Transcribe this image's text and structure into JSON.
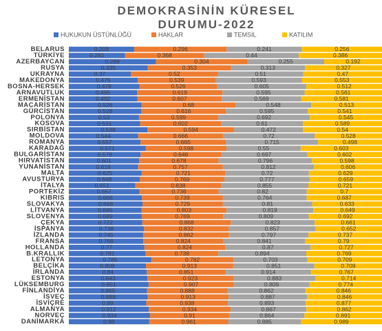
{
  "chart_data": {
    "type": "stacked-percent-bar",
    "title": "DEMOKRASİNİN KÜRESEL DURUMU-2022",
    "categories": [
      "BELARUS",
      "TÜRKİYE",
      "AZERBAYCAN",
      "RUSYA",
      "UKRAYNA",
      "MAKEDONYA",
      "BOSNA-HERSEK",
      "ARNAVUTLUK",
      "ERMENİSTAN",
      "MACARİSTAN",
      "GÜRCİSTAN",
      "POLONYA",
      "KOSOVA",
      "SIRBİSTAN",
      "MOLDOVA",
      "ROMANYA",
      "KARADAĞ",
      "BULGARİSTAN",
      "HIRVATİSTAN",
      "YUNANİSTAN",
      "MALTA",
      "AVUSTURYA",
      "İTALYA",
      "PORTEKİZ",
      "KIBRIS",
      "SLOVAKYA",
      "LİTVANYA",
      "SLOVENYA",
      "ÇEKYA",
      "İSPANYA",
      "İZLANDA",
      "FRANSA",
      "HOLLANDA",
      "B.KRALLIK",
      "LETONYA",
      "BELÇİKA",
      "İRLANDA",
      "ESTONYA",
      "LÜKSEMBURG",
      "FİNLANDİYA",
      "İSVEÇ",
      "İSVİÇRE",
      "ALMANYA",
      "NORVEÇ",
      "DANİMARKA"
    ],
    "series": [
      {
        "name": "HUKUKUN ÜSTÜNLÜĞÜ",
        "color": "#4472c4",
        "values": [
          0.209,
          0.261,
          0.289,
          0.335,
          0.37,
          0.475,
          0.478,
          0.495,
          0.492,
          0.526,
          0.528,
          0.53,
          0.531,
          0.538,
          0.544,
          0.557,
          0.571,
          0.579,
          0.601,
          0.616,
          0.625,
          0.648,
          0.651,
          0.657,
          0.666,
          0.668,
          0.686,
          0.689,
          0.722,
          0.738,
          0.745,
          0.766,
          0.77,
          0.781,
          0.785,
          0.808,
          0.84,
          0.843,
          0.851,
          0.865,
          0.889,
          0.89,
          0.912,
          0.934,
          0.98
        ]
      },
      {
        "name": "HAKLAR",
        "color": "#ed7d31",
        "values": [
          0.296,
          0.368,
          0.304,
          0.353,
          0.52,
          0.539,
          0.526,
          0.619,
          0.607,
          0.68,
          0.616,
          0.599,
          0.602,
          0.594,
          0.666,
          0.665,
          0.598,
          0.648,
          0.678,
          0.757,
          0.721,
          0.769,
          0.838,
          0.736,
          0.739,
          0.729,
          0.803,
          0.769,
          0.868,
          0.832,
          0.862,
          0.824,
          0.824,
          0.738,
          0.782,
          0.913,
          0.851,
          0.923,
          0.907,
          0.888,
          0.913,
          0.938,
          0.934,
          0.91,
          0.961
        ]
      },
      {
        "name": "TEMSİL",
        "color": "#a5a5a5",
        "values": [
          0.241,
          0.44,
          0.255,
          0.313,
          0.51,
          0.593,
          0.605,
          0.595,
          0.569,
          0.548,
          0.595,
          0.692,
          0.61,
          0.472,
          0.72,
          0.715,
          0.55,
          0.697,
          0.796,
          0.812,
          0.72,
          0.777,
          0.855,
          0.82,
          0.764,
          0.81,
          0.819,
          0.809,
          0.823,
          0.857,
          0.797,
          0.841,
          0.87,
          0.894,
          0.703,
          0.851,
          0.914,
          0.883,
          0.809,
          0.862,
          0.887,
          0.893,
          0.867,
          0.864,
          0.885
        ]
      },
      {
        "name": "KATILIM",
        "color": "#ffc000",
        "values": [
          0.256,
          0.386,
          0.192,
          0.327,
          0.47,
          0.553,
          0.512,
          0.561,
          0.581,
          0.513,
          0.541,
          0.545,
          0.589,
          0.54,
          0.528,
          0.498,
          0.603,
          0.602,
          0.598,
          0.606,
          0.629,
          0.659,
          0.721,
          0.7,
          0.687,
          0.633,
          0.649,
          0.692,
          0.661,
          0.652,
          0.737,
          0.79,
          0.727,
          0.769,
          0.709,
          0.709,
          0.767,
          0.714,
          0.774,
          0.846,
          0.846,
          0.877,
          0.862,
          0.891,
          0.989
        ]
      }
    ]
  }
}
